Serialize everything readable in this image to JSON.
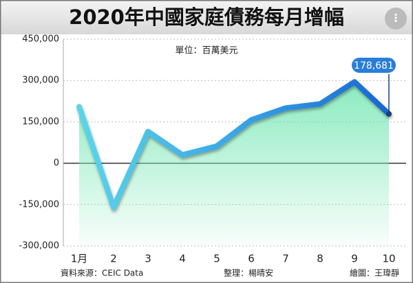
{
  "chart_data": {
    "type": "line",
    "title": "2020年中國家庭債務每月增幅",
    "subtitle": "單位：百萬美元",
    "categories": [
      "1月",
      "2",
      "3",
      "4",
      "5",
      "6",
      "7",
      "8",
      "9",
      "10"
    ],
    "values": [
      205000,
      -160000,
      115000,
      30000,
      62000,
      157000,
      200000,
      215000,
      295000,
      178681
    ],
    "value_labels": [
      null,
      null,
      null,
      null,
      null,
      null,
      null,
      null,
      null,
      "178,681"
    ],
    "color": "#2a8ae0",
    "area_color": "#7de8b8",
    "ylim": [
      -300000,
      450000
    ],
    "yticks": [
      {
        "value": -300000,
        "label": "-300,000"
      },
      {
        "value": -150000,
        "label": "-150,000"
      },
      0,
      {
        "value": 150000,
        "label": "150,000"
      },
      {
        "value": 300000,
        "label": "300,000"
      },
      {
        "value": 450000,
        "label": "450,000"
      }
    ],
    "grid": true,
    "source": "資料來源：CEIC Data",
    "editor": "整理：楊晴安",
    "illustrator": "繪圖：王瑋靜"
  }
}
